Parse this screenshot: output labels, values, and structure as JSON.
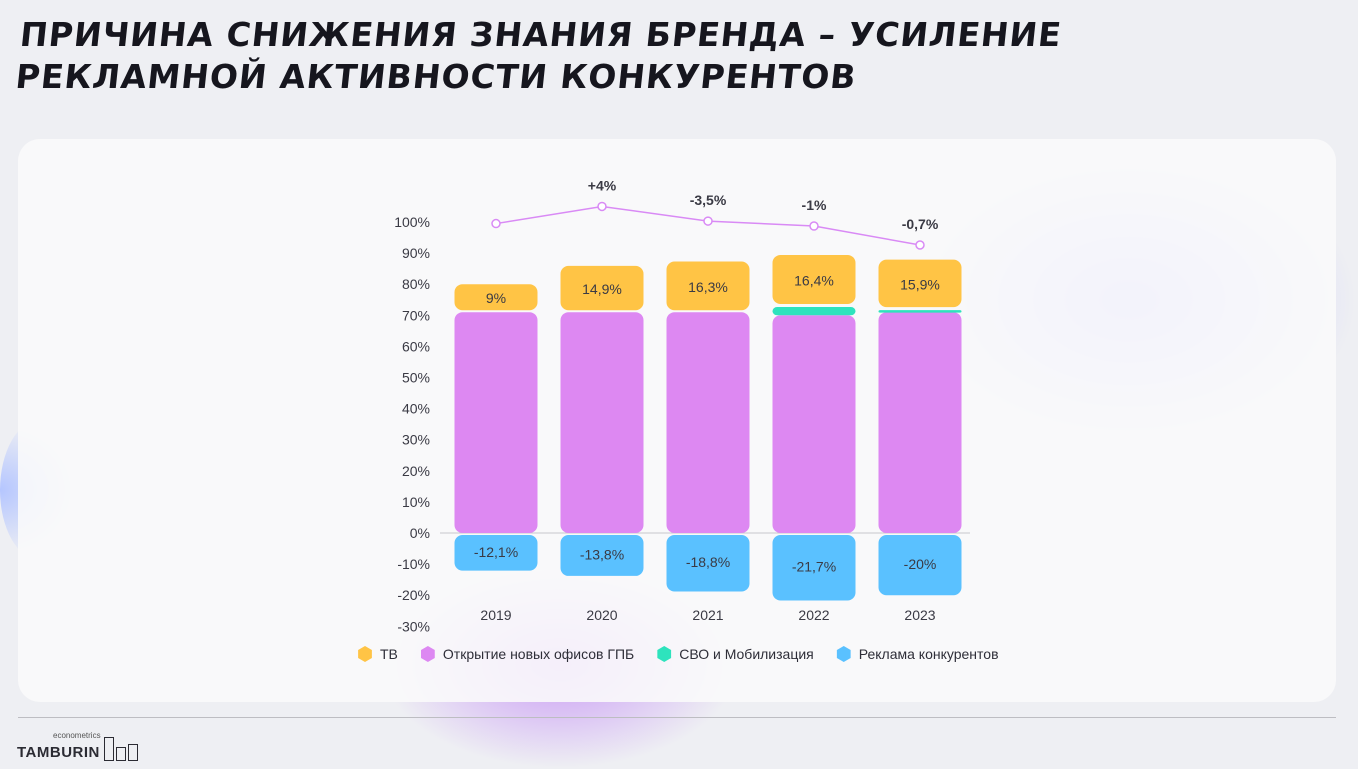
{
  "title": "Причина снижения знания бренда – усиление рекламной активности конкурентов",
  "logo": {
    "name": "TAMBURIN",
    "sub": "econometrics"
  },
  "chart_data": {
    "type": "bar",
    "stacked": true,
    "categories": [
      "2019",
      "2020",
      "2021",
      "2022",
      "2023"
    ],
    "ylim": [
      -30,
      100
    ],
    "yticks": [
      "100%",
      "90%",
      "80%",
      "70%",
      "60%",
      "50%",
      "40%",
      "30%",
      "20%",
      "10%",
      "0%",
      "-10%",
      "-20%",
      "-30%"
    ],
    "series": [
      {
        "name": "Открытие новых офисов ГПБ",
        "color": "#dd88f2",
        "values": [
          71,
          71,
          71,
          70,
          71
        ]
      },
      {
        "name": "СВО и Мобилизация",
        "color": "#2ee3bd",
        "values": [
          0,
          0,
          0,
          3,
          1
        ]
      },
      {
        "name": "ТВ",
        "color": "#ffc445",
        "values": [
          9,
          14.9,
          16.3,
          16.4,
          15.9
        ],
        "labels": [
          "9%",
          "14,9%",
          "16,3%",
          "16,4%",
          "15,9%"
        ]
      },
      {
        "name": "Реклама конкурентов",
        "color": "#5ac1ff",
        "values": [
          -12.1,
          -13.8,
          -18.8,
          -21.7,
          -20
        ],
        "labels": [
          "-12,1%",
          "-13,8%",
          "-18,8%",
          "-21,7%",
          "-20%"
        ]
      }
    ],
    "line": {
      "color": "#d98af5",
      "values": [
        99.5,
        105,
        100.3,
        98.7,
        92.6
      ],
      "labels": [
        "",
        "+4%",
        "-3,5%",
        "-1%",
        "-0,7%"
      ]
    },
    "legend": [
      "ТВ",
      "Открытие новых офисов ГПБ",
      "СВО и Мобилизация",
      "Реклама конкурентов"
    ],
    "legend_position": "bottom"
  }
}
